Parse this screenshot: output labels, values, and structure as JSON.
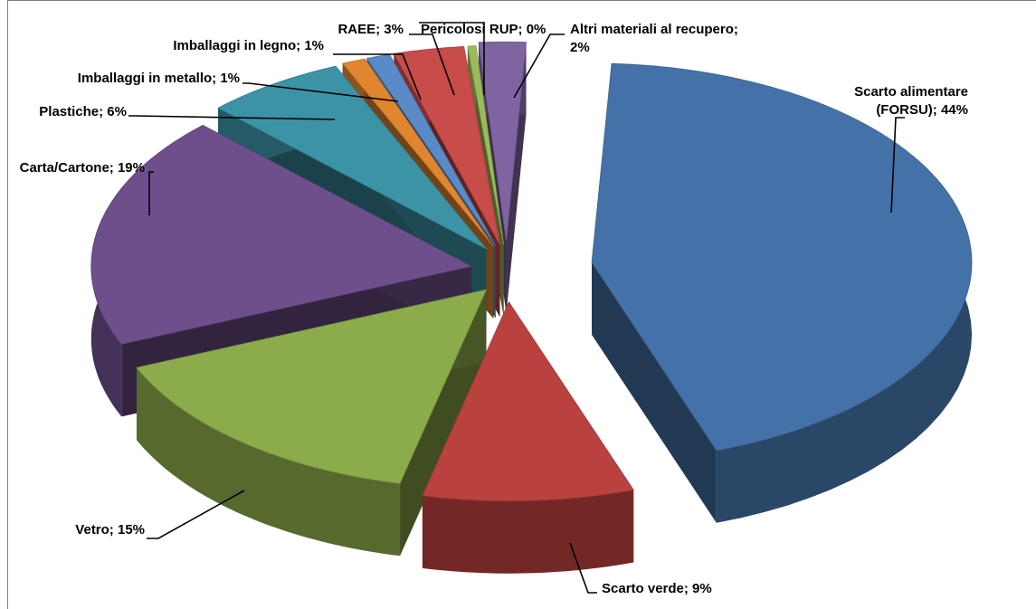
{
  "chart_data": {
    "type": "pie",
    "style": "3d-exploded",
    "title": "",
    "slices": [
      {
        "label_lines": [
          "Scarto alimentare",
          "(FORSU); 44%"
        ],
        "category": "Scarto alimentare (FORSU)",
        "value": 44,
        "color": "#4472a8"
      },
      {
        "label_lines": [
          "Scarto verde; 9%"
        ],
        "category": "Scarto verde",
        "value": 9,
        "color": "#b9413e"
      },
      {
        "label_lines": [
          "Vetro; 15%"
        ],
        "category": "Vetro",
        "value": 15,
        "color": "#8cab4a"
      },
      {
        "label_lines": [
          "Carta/Cartone;  19%"
        ],
        "category": "Carta/Cartone",
        "value": 19,
        "color": "#6e4f8c"
      },
      {
        "label_lines": [
          "Plastiche; 6%"
        ],
        "category": "Plastiche",
        "value": 6,
        "color": "#3c93a6"
      },
      {
        "label_lines": [
          "Imballaggi in metallo; 1%"
        ],
        "category": "Imballaggi in metallo",
        "value": 1,
        "color": "#e0862f"
      },
      {
        "label_lines": [
          "Imballaggi in legno; 1%"
        ],
        "category": "Imballaggi in legno",
        "value": 1,
        "color": "#5b8ac8"
      },
      {
        "label_lines": [
          "RAEE;  3%"
        ],
        "category": "RAEE",
        "value": 3,
        "color": "#c84c4a"
      },
      {
        "label_lines": [
          "Pericolosi RUP; 0%"
        ],
        "category": "Pericolosi RUP",
        "value": 0,
        "color": "#9bbb59"
      },
      {
        "label_lines": [
          "Altri materiali al recupero;",
          "2%"
        ],
        "category": "Altri materiali al recupero",
        "value": 2,
        "color": "#8064a2"
      }
    ]
  }
}
